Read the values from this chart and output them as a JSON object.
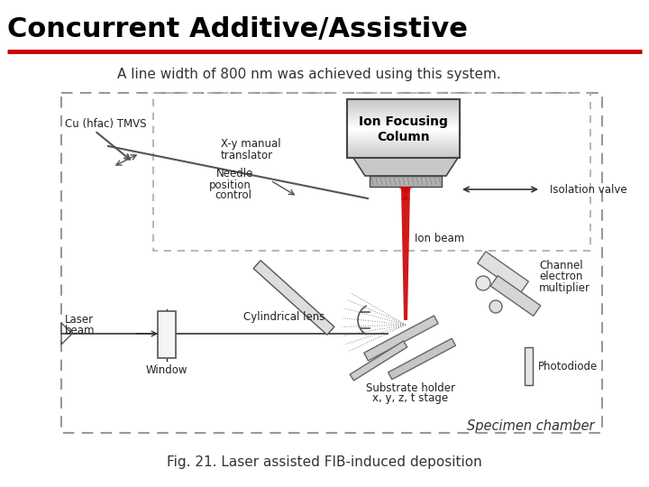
{
  "title": "Concurrent Additive/Assistive",
  "title_color": "#000000",
  "title_fontsize": 22,
  "title_bold": true,
  "red_line_color": "#cc0000",
  "subtitle": "A line width of 800 nm was achieved using this system.",
  "subtitle_fontsize": 11,
  "caption": "Fig. 21. Laser assisted FIB-induced deposition",
  "caption_fontsize": 11,
  "bg_color": "#ffffff",
  "label_fontsize": 8.5,
  "label_color": "#222222"
}
